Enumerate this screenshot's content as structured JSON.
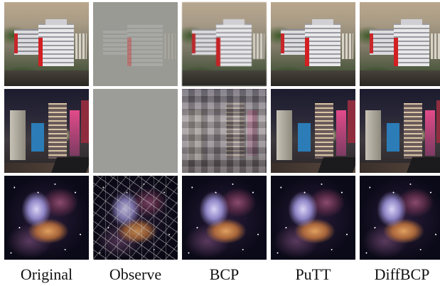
{
  "figure": {
    "columns": [
      {
        "label": "Original"
      },
      {
        "label": "Observe"
      },
      {
        "label": "BCP"
      },
      {
        "label": "PuTT"
      },
      {
        "label": "DiffBCP"
      }
    ],
    "rows": [
      {
        "scene": "aerial-city-photo"
      },
      {
        "scene": "night-city-photo"
      },
      {
        "scene": "nebula-photo"
      }
    ]
  }
}
